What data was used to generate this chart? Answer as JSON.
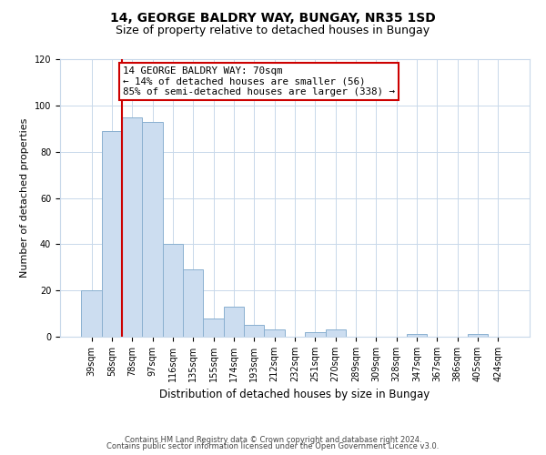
{
  "title": "14, GEORGE BALDRY WAY, BUNGAY, NR35 1SD",
  "subtitle": "Size of property relative to detached houses in Bungay",
  "xlabel": "Distribution of detached houses by size in Bungay",
  "ylabel": "Number of detached properties",
  "bar_labels": [
    "39sqm",
    "58sqm",
    "78sqm",
    "97sqm",
    "116sqm",
    "135sqm",
    "155sqm",
    "174sqm",
    "193sqm",
    "212sqm",
    "232sqm",
    "251sqm",
    "270sqm",
    "289sqm",
    "309sqm",
    "328sqm",
    "347sqm",
    "367sqm",
    "386sqm",
    "405sqm",
    "424sqm"
  ],
  "bar_values": [
    20,
    89,
    95,
    93,
    40,
    29,
    8,
    13,
    5,
    3,
    0,
    2,
    3,
    0,
    0,
    0,
    1,
    0,
    0,
    1,
    0
  ],
  "bar_color": "#ccddf0",
  "bar_edge_color": "#8ab0d0",
  "vline_x_idx": 2,
  "vline_color": "#cc0000",
  "annotation_text": "14 GEORGE BALDRY WAY: 70sqm\n← 14% of detached houses are smaller (56)\n85% of semi-detached houses are larger (338) →",
  "annotation_box_edge": "#cc0000",
  "ylim": [
    0,
    120
  ],
  "yticks": [
    0,
    20,
    40,
    60,
    80,
    100,
    120
  ],
  "footnote1": "Contains HM Land Registry data © Crown copyright and database right 2024.",
  "footnote2": "Contains public sector information licensed under the Open Government Licence v3.0.",
  "bg_color": "#ffffff",
  "grid_color": "#c8d8ea",
  "title_fontsize": 10,
  "subtitle_fontsize": 9,
  "ylabel_fontsize": 8,
  "xlabel_fontsize": 8.5,
  "tick_fontsize": 7,
  "annot_fontsize": 7.8,
  "footnote_fontsize": 6.0
}
